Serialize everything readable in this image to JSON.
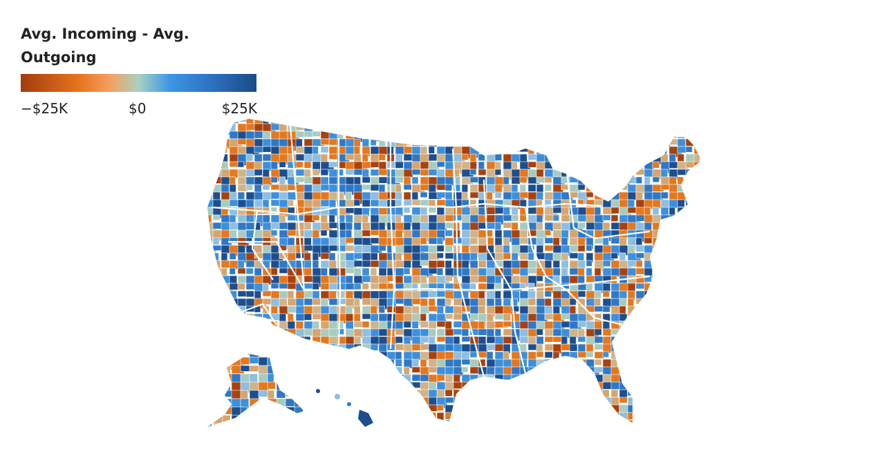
{
  "legend": {
    "title": "Avg. Incoming - Avg. Outgoing",
    "tick_min": "−$25K",
    "tick_mid": "$0",
    "tick_max": "$25K",
    "colors": [
      "#a23c0e",
      "#e8741d",
      "#f4a062",
      "#a7d2c0",
      "#3d97e6",
      "#2e73c3",
      "#1a4b87"
    ]
  },
  "map": {
    "region": "United States counties",
    "border_color": "#ffffff",
    "value_range": [
      -25000,
      25000
    ],
    "palette_mix": {
      "dark_orange": "#a7420f",
      "orange": "#e3781f",
      "light_orange": "#d6a46e",
      "tan": "#cfb38a",
      "sage": "#a8cbbf",
      "light_blue": "#8ebee0",
      "blue": "#3d8fdb",
      "mid_blue": "#2f78c5",
      "dark_blue": "#1d4e8e",
      "no_data": "#dcdcdc"
    }
  }
}
